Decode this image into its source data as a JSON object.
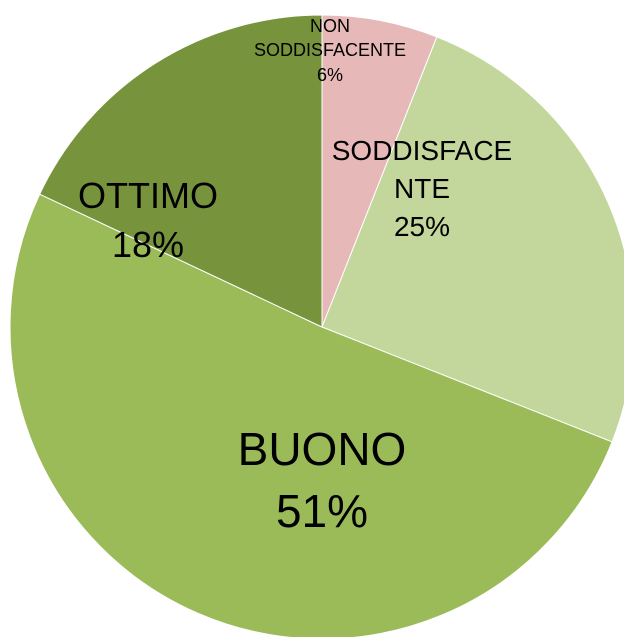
{
  "chart_data": {
    "type": "pie",
    "categories": [
      "NON SODDISFACENTE",
      "SODDISFACENTE",
      "BUONO",
      "OTTIMO"
    ],
    "values": [
      6,
      25,
      51,
      18
    ],
    "value_labels": [
      "6%",
      "25%",
      "51%",
      "18%"
    ],
    "colors": [
      "#e6b9b8",
      "#c3d69b",
      "#9bbb59",
      "#77933c"
    ]
  }
}
